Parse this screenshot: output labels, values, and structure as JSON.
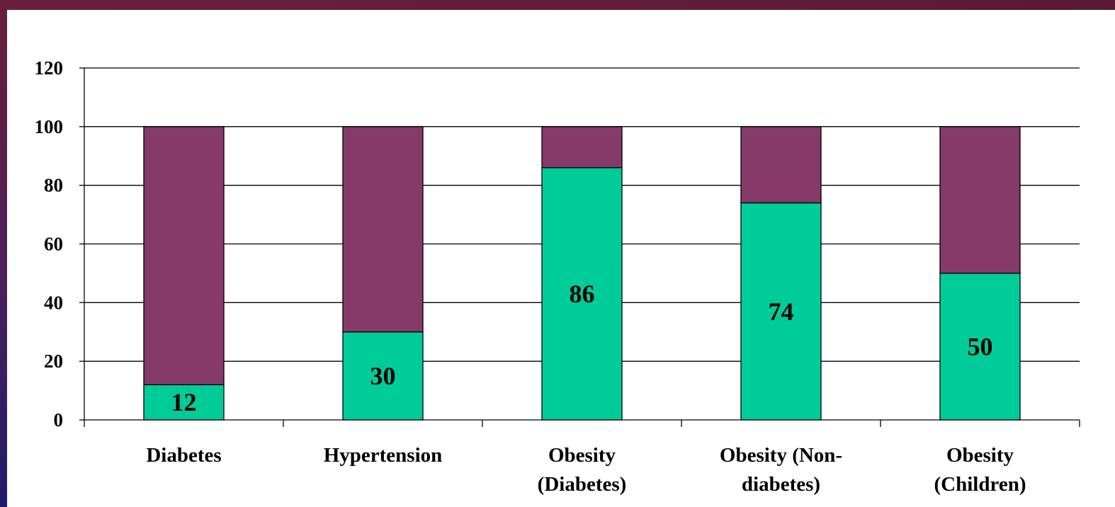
{
  "chart_data": {
    "type": "bar",
    "stacked": true,
    "categories": [
      [
        "Diabetes"
      ],
      [
        "Hypertension"
      ],
      [
        "Obesity",
        "(Diabetes)"
      ],
      [
        "Obesity (Non-",
        "diabetes)"
      ],
      [
        "Obesity",
        "(Children)"
      ]
    ],
    "series": [
      {
        "values": [
          12,
          30,
          86,
          74,
          50
        ],
        "color": "#00cc99"
      },
      {
        "values": [
          88,
          70,
          14,
          26,
          50
        ],
        "color": "#853a69"
      }
    ],
    "data_labels": [
      "12",
      "30",
      "86",
      "74",
      "50"
    ],
    "ylim": [
      0,
      120
    ],
    "yticks": [
      0,
      20,
      40,
      60,
      80,
      100,
      120
    ],
    "grid": true,
    "legend": "none",
    "title": "",
    "xlabel": "",
    "ylabel": ""
  },
  "colors": {
    "background_top": "#6a1f3a",
    "background_bottom": "#1f1a6a",
    "panel": "#ffffff"
  }
}
